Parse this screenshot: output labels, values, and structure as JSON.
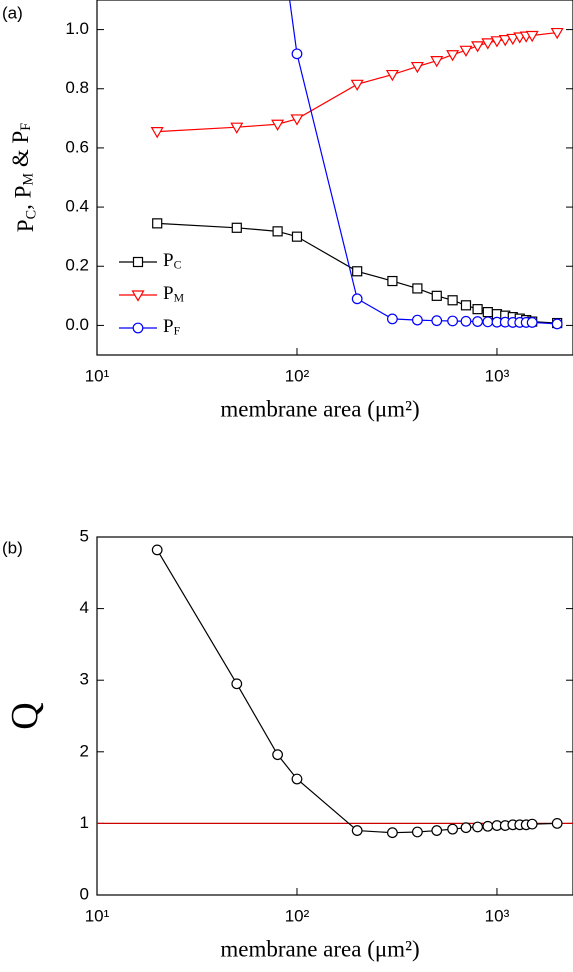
{
  "chart_data": [
    {
      "type": "line",
      "panel_label": "(a)",
      "x_label": "membrane area (μm²)",
      "y_label": "PC, PM & PF",
      "x": [
        20,
        50,
        80,
        100,
        200,
        300,
        400,
        500,
        600,
        700,
        800,
        900,
        1000,
        1100,
        1200,
        1300,
        1400,
        1500,
        2000
      ],
      "series": [
        {
          "name": "PC",
          "color": "#000000",
          "marker": "square",
          "values": [
            0.345,
            0.33,
            0.318,
            0.3,
            0.183,
            0.15,
            0.125,
            0.1,
            0.085,
            0.068,
            0.055,
            0.045,
            0.038,
            0.033,
            0.028,
            0.023,
            0.018,
            0.013,
            0.008
          ]
        },
        {
          "name": "PM",
          "color": "#ff0000",
          "marker": "triangle-down",
          "values": [
            0.655,
            0.67,
            0.68,
            0.698,
            0.815,
            0.848,
            0.875,
            0.895,
            0.915,
            0.93,
            0.945,
            0.955,
            0.962,
            0.966,
            0.97,
            0.975,
            0.978,
            0.98,
            0.99
          ]
        },
        {
          "name": "PF",
          "color": "#0000ff",
          "marker": "circle",
          "values": [
            null,
            null,
            1.4,
            0.918,
            0.09,
            0.022,
            0.018,
            0.016,
            0.015,
            0.014,
            0.013,
            0.012,
            0.011,
            0.011,
            0.01,
            0.01,
            0.01,
            0.01,
            0.005
          ]
        }
      ],
      "log_x": true,
      "xlim": [
        10,
        2400
      ],
      "xticks": [
        {
          "value": 10,
          "label": "10¹"
        },
        {
          "value": 100,
          "label": "10²"
        },
        {
          "value": 1000,
          "label": "10³"
        }
      ],
      "ylim": [
        -0.1,
        1.1
      ],
      "yticks": [
        {
          "value": 0,
          "label": "0.0"
        },
        {
          "value": 0.2,
          "label": "0.2"
        },
        {
          "value": 0.4,
          "label": "0.4"
        },
        {
          "value": 0.6,
          "label": "0.6"
        },
        {
          "value": 0.8,
          "label": "0.8"
        },
        {
          "value": 1.0,
          "label": "1.0"
        }
      ],
      "legend": "lower left"
    },
    {
      "type": "line",
      "panel_label": "(b)",
      "x_label": "membrane area (μm²)",
      "y_label": "Q",
      "x": [
        20,
        50,
        80,
        100,
        200,
        300,
        400,
        500,
        600,
        700,
        800,
        900,
        1000,
        1100,
        1200,
        1300,
        1400,
        1500,
        2000
      ],
      "series": [
        {
          "color": "#000000",
          "marker": "circle",
          "values": [
            4.82,
            2.95,
            1.96,
            1.62,
            0.9,
            0.87,
            0.88,
            0.9,
            0.92,
            0.94,
            0.95,
            0.96,
            0.97,
            0.97,
            0.98,
            0.98,
            0.98,
            0.99,
            1.0
          ]
        }
      ],
      "reference_line": 1,
      "reference_color": "#cc0000",
      "log_x": true,
      "xlim": [
        10,
        2400
      ],
      "xticks": [
        {
          "value": 10,
          "label": "10¹"
        },
        {
          "value": 100,
          "label": "10²"
        },
        {
          "value": 1000,
          "label": "10³"
        }
      ],
      "ylim": [
        0,
        5
      ],
      "yticks": [
        0,
        1,
        2,
        3,
        4,
        5
      ]
    }
  ]
}
